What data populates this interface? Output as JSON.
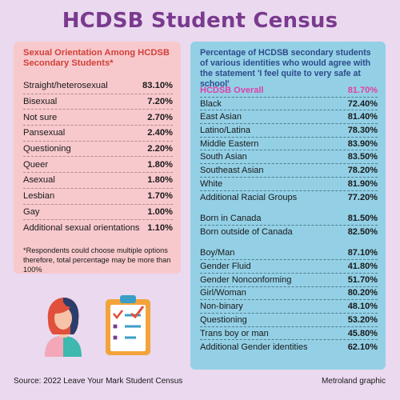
{
  "title": "HCDSB Student Census",
  "left_panel": {
    "heading": "Sexual Orientation Among HCDSB Secondary Students*",
    "rows": [
      {
        "label": "Straight/heterosexual",
        "value": "83.10%"
      },
      {
        "label": "Bisexual",
        "value": "7.20%"
      },
      {
        "label": "Not sure",
        "value": "2.70%"
      },
      {
        "label": "Pansexual",
        "value": "2.40%"
      },
      {
        "label": "Questioning",
        "value": "2.20%"
      },
      {
        "label": "Queer",
        "value": "1.80%"
      },
      {
        "label": "Asexual",
        "value": "1.80%"
      },
      {
        "label": "Lesbian",
        "value": "1.70%"
      },
      {
        "label": "Gay",
        "value": "1.00%"
      },
      {
        "label": "Additional sexual orientations",
        "value": "1.10%"
      }
    ],
    "note": "*Respondents could choose multiple options therefore, total percentage may be more than 100%"
  },
  "right_panel": {
    "heading": "Percentage of HCDSB secondary students of various identities who would agree with the statement 'I feel quite to very safe at school'",
    "overall": {
      "label": "HCDSB Overall",
      "value": "81.70%"
    },
    "race_rows": [
      {
        "label": "Black",
        "value": "72.40%"
      },
      {
        "label": "East Asian",
        "value": "81.40%"
      },
      {
        "label": "Latino/Latina",
        "value": "78.30%"
      },
      {
        "label": "Middle Eastern",
        "value": "83.90%"
      },
      {
        "label": "South Asian",
        "value": "83.50%"
      },
      {
        "label": "Southeast Asian",
        "value": "78.20%"
      },
      {
        "label": "White",
        "value": "81.90%"
      },
      {
        "label": "Additional Racial Groups",
        "value": "77.20%"
      }
    ],
    "birth_rows": [
      {
        "label": "Born in Canada",
        "value": "81.50%"
      },
      {
        "label": "Born outside of Canada",
        "value": "82.50%"
      }
    ],
    "gender_rows": [
      {
        "label": "Boy/Man",
        "value": "87.10%"
      },
      {
        "label": "Gender Fluid",
        "value": "41.80%"
      },
      {
        "label": "Gender Nonconforming",
        "value": "51.70%"
      },
      {
        "label": "Girl/Woman",
        "value": "80.20%"
      },
      {
        "label": "Non-binary",
        "value": "48.10%"
      },
      {
        "label": "Questioning",
        "value": "53.20%"
      },
      {
        "label": "Trans boy or man",
        "value": "45.80%"
      },
      {
        "label": "Additional Gender identities",
        "value": "62.10%"
      }
    ]
  },
  "illustrations": {
    "person": "person-icon",
    "clipboard": "clipboard-checklist-icon"
  },
  "footer": {
    "source": "Source: 2022 Leave Your Mark Student Census",
    "credit": "Metroland graphic"
  },
  "colors": {
    "background": "#ead9ef",
    "title": "#7a3a8e",
    "left_panel": "#f7c9cc",
    "left_heading": "#d2403a",
    "right_panel": "#93d0e6",
    "right_heading": "#2d4a8a",
    "overall_highlight": "#e040a8"
  }
}
